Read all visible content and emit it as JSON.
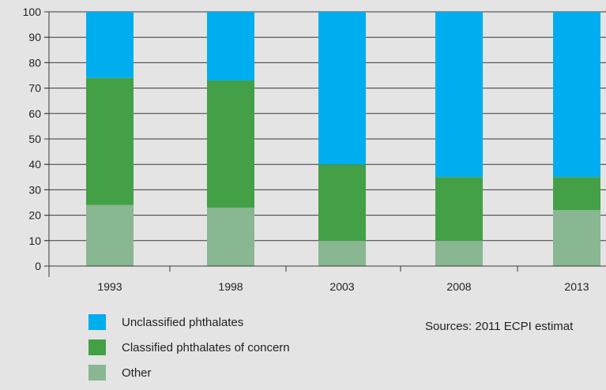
{
  "chart_data": {
    "type": "bar",
    "stacked": true,
    "categories": [
      "1993",
      "1998",
      "2003",
      "2008",
      "2013"
    ],
    "series": [
      {
        "name": "Other",
        "color": "#88b791",
        "values": [
          24,
          23,
          10,
          10,
          22
        ]
      },
      {
        "name": "Classified phthalates of concern",
        "color": "#43a047",
        "values": [
          50,
          50,
          30,
          25,
          13
        ]
      },
      {
        "name": "Unclassified phthalates",
        "color": "#00adef",
        "values": [
          26,
          27,
          60,
          65,
          65
        ]
      }
    ],
    "yticks": [
      "0",
      "10",
      "20",
      "30",
      "40",
      "50",
      "60",
      "70",
      "80",
      "90",
      "100"
    ],
    "ylim": [
      0,
      100
    ],
    "grid": true
  },
  "legend": [
    {
      "label": "Unclassified phthalates",
      "color": "#00adef"
    },
    {
      "label": "Classified phthalates of concern",
      "color": "#43a047"
    },
    {
      "label": "Other",
      "color": "#88b791"
    }
  ],
  "source_note": "Sources: 2011 ECPI estimat"
}
